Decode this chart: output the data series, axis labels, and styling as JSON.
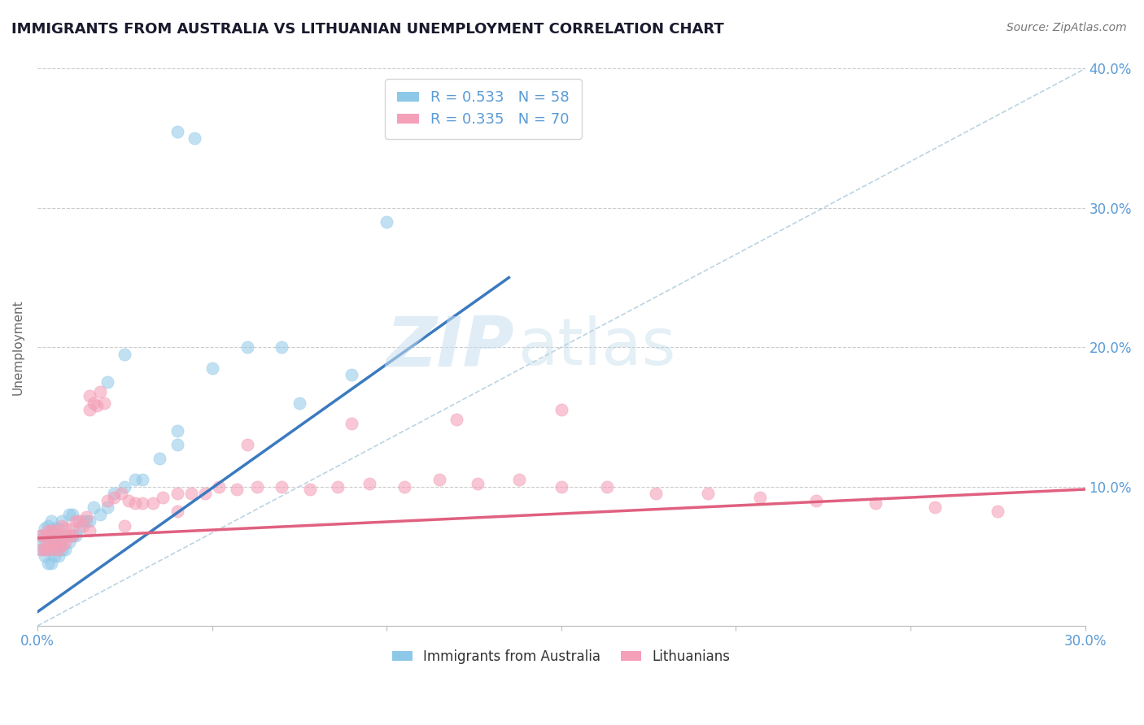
{
  "title": "IMMIGRANTS FROM AUSTRALIA VS LITHUANIAN UNEMPLOYMENT CORRELATION CHART",
  "source": "Source: ZipAtlas.com",
  "ylabel": "Unemployment",
  "xlim": [
    0.0,
    0.3
  ],
  "ylim": [
    0.0,
    0.4
  ],
  "legend_R1": "R = 0.533",
  "legend_N1": "N = 58",
  "legend_R2": "R = 0.335",
  "legend_N2": "N = 70",
  "color_blue": "#8ec8e8",
  "color_pink": "#f4a0b8",
  "color_line_blue": "#3a7abf",
  "color_line_pink": "#e06080",
  "color_diag": "#b0ccdd",
  "color_title": "#1a1a2e",
  "color_axis": "#5b9bd5",
  "bg_color": "#ffffff",
  "blue_line_x0": 0.0,
  "blue_line_y0": 0.01,
  "blue_line_x1": 0.135,
  "blue_line_y1": 0.25,
  "pink_line_x0": 0.0,
  "pink_line_y0": 0.063,
  "pink_line_x1": 0.3,
  "pink_line_y1": 0.098,
  "blue_x": [
    0.001,
    0.001,
    0.001,
    0.002,
    0.002,
    0.002,
    0.002,
    0.003,
    0.003,
    0.003,
    0.003,
    0.003,
    0.004,
    0.004,
    0.004,
    0.004,
    0.004,
    0.005,
    0.005,
    0.005,
    0.005,
    0.005,
    0.006,
    0.006,
    0.006,
    0.007,
    0.007,
    0.008,
    0.008,
    0.009,
    0.009,
    0.01,
    0.01,
    0.011,
    0.012,
    0.013,
    0.014,
    0.015,
    0.016,
    0.018,
    0.02,
    0.022,
    0.025,
    0.028,
    0.03,
    0.035,
    0.04,
    0.04,
    0.05,
    0.06,
    0.07,
    0.09,
    0.1,
    0.04,
    0.045,
    0.02,
    0.025,
    0.075
  ],
  "blue_y": [
    0.055,
    0.06,
    0.065,
    0.05,
    0.055,
    0.065,
    0.07,
    0.045,
    0.055,
    0.06,
    0.065,
    0.072,
    0.045,
    0.055,
    0.06,
    0.068,
    0.075,
    0.05,
    0.055,
    0.06,
    0.065,
    0.07,
    0.05,
    0.06,
    0.07,
    0.055,
    0.075,
    0.055,
    0.065,
    0.06,
    0.08,
    0.065,
    0.08,
    0.065,
    0.07,
    0.075,
    0.075,
    0.075,
    0.085,
    0.08,
    0.085,
    0.095,
    0.1,
    0.105,
    0.105,
    0.12,
    0.13,
    0.14,
    0.185,
    0.2,
    0.2,
    0.18,
    0.29,
    0.355,
    0.35,
    0.175,
    0.195,
    0.16
  ],
  "pink_x": [
    0.001,
    0.001,
    0.002,
    0.002,
    0.003,
    0.003,
    0.003,
    0.004,
    0.004,
    0.005,
    0.005,
    0.006,
    0.006,
    0.007,
    0.007,
    0.008,
    0.008,
    0.009,
    0.01,
    0.011,
    0.012,
    0.013,
    0.014,
    0.015,
    0.015,
    0.016,
    0.017,
    0.018,
    0.019,
    0.02,
    0.022,
    0.024,
    0.026,
    0.028,
    0.03,
    0.033,
    0.036,
    0.04,
    0.044,
    0.048,
    0.052,
    0.057,
    0.063,
    0.07,
    0.078,
    0.086,
    0.095,
    0.105,
    0.115,
    0.126,
    0.138,
    0.15,
    0.163,
    0.177,
    0.192,
    0.207,
    0.223,
    0.24,
    0.257,
    0.275,
    0.15,
    0.12,
    0.09,
    0.06,
    0.04,
    0.025,
    0.015,
    0.01,
    0.007,
    0.004
  ],
  "pink_y": [
    0.055,
    0.065,
    0.055,
    0.065,
    0.055,
    0.06,
    0.068,
    0.058,
    0.068,
    0.055,
    0.068,
    0.055,
    0.065,
    0.058,
    0.072,
    0.06,
    0.07,
    0.065,
    0.07,
    0.075,
    0.075,
    0.072,
    0.078,
    0.165,
    0.155,
    0.16,
    0.158,
    0.168,
    0.16,
    0.09,
    0.092,
    0.095,
    0.09,
    0.088,
    0.088,
    0.088,
    0.092,
    0.095,
    0.095,
    0.095,
    0.1,
    0.098,
    0.1,
    0.1,
    0.098,
    0.1,
    0.102,
    0.1,
    0.105,
    0.102,
    0.105,
    0.1,
    0.1,
    0.095,
    0.095,
    0.092,
    0.09,
    0.088,
    0.085,
    0.082,
    0.155,
    0.148,
    0.145,
    0.13,
    0.082,
    0.072,
    0.068,
    0.065,
    0.062,
    0.06
  ]
}
